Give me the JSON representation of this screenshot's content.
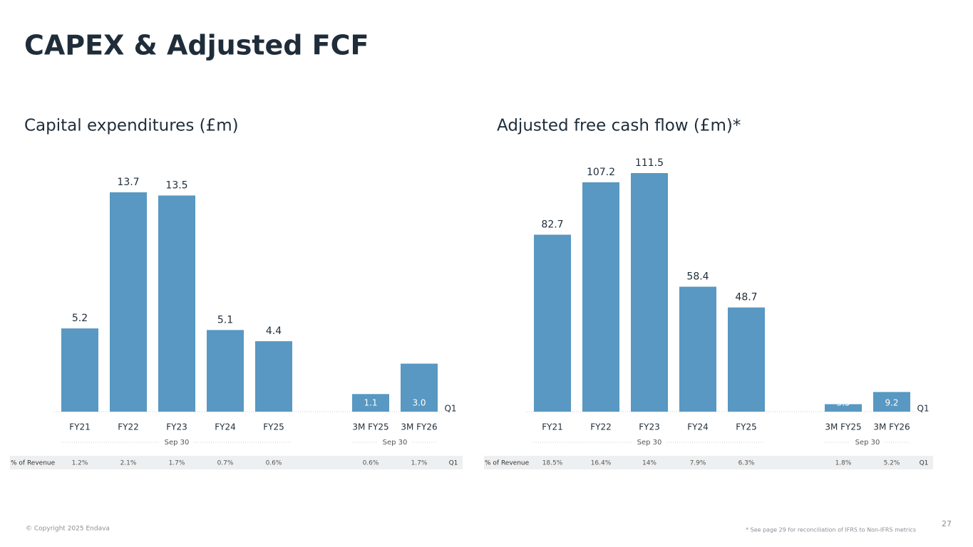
{
  "title": "CAPEX & Adjusted FCF",
  "chart_data": [
    {
      "type": "bar",
      "title": "Capital expenditures (£m)",
      "categories": [
        "FY21",
        "FY22",
        "FY23",
        "FY24",
        "FY25",
        "3M FY25",
        "3M FY26"
      ],
      "values": [
        5.2,
        13.7,
        13.5,
        5.1,
        4.4,
        1.1,
        3.0
      ],
      "value_labels": [
        "5.2",
        "13.7",
        "13.5",
        "5.1",
        "4.4",
        "1.1",
        "3.0"
      ],
      "color": "#5898c2",
      "group_labels": [
        "Sep 30",
        "Sep 30"
      ],
      "period_label": "Q1",
      "revenue_row": {
        "label": "% of Revenue",
        "values": [
          "1.2%",
          "2.1%",
          "1.7%",
          "0.7%",
          "0.6%",
          "0.6%",
          "1.7%"
        ],
        "period": "Q1"
      }
    },
    {
      "type": "bar",
      "title": "Adjusted free cash flow (£m)*",
      "categories": [
        "FY21",
        "FY22",
        "FY23",
        "FY24",
        "FY25",
        "3M FY25",
        "3M FY26"
      ],
      "values": [
        82.7,
        107.2,
        111.5,
        58.4,
        48.7,
        3.5,
        9.2
      ],
      "value_labels": [
        "82.7",
        "107.2",
        "111.5",
        "58.4",
        "48.7",
        "3.5",
        "9.2"
      ],
      "color": "#5898c2",
      "group_labels": [
        "Sep 30",
        "Sep 30"
      ],
      "period_label": "Q1",
      "revenue_row": {
        "label": "% of Revenue",
        "values": [
          "18.5%",
          "16.4%",
          "14%",
          "7.9%",
          "6.3%",
          "1.8%",
          "5.2%"
        ],
        "period": "Q1"
      }
    }
  ],
  "footer": {
    "copyright": "© Copyright 2025 Endava",
    "note": "* See page 29 for reconciliation of IFRS to Non-IFRS metrics",
    "page": "27"
  }
}
